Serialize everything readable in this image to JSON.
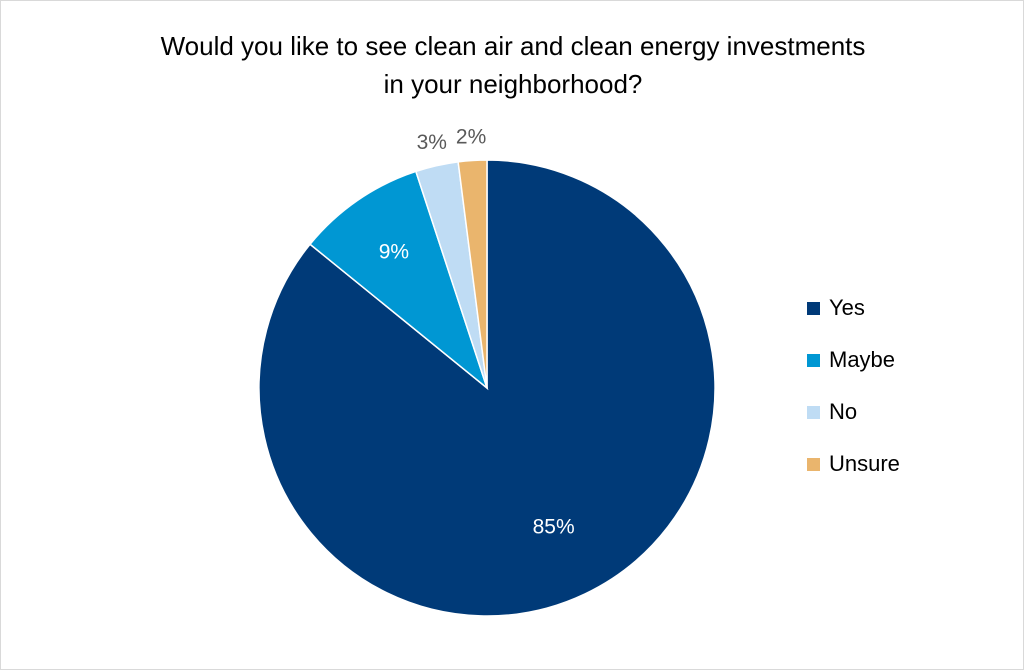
{
  "chart_data": {
    "type": "pie",
    "title_lines": [
      "Would you like to see clean air and clean energy investments",
      "in your neighborhood?"
    ],
    "categories": [
      "Yes",
      "Maybe",
      "No",
      "Unsure"
    ],
    "values": [
      85,
      9,
      3,
      2
    ],
    "labels": [
      "85%",
      "9%",
      "3%",
      "2%"
    ],
    "colors": [
      "#003a78",
      "#0097d3",
      "#bfdcf4",
      "#eab56d"
    ],
    "label_colors": [
      "#ffffff",
      "#ffffff",
      "#595959",
      "#595959"
    ],
    "legend_position": "right",
    "start": "12 o'clock",
    "direction": "clockwise"
  }
}
